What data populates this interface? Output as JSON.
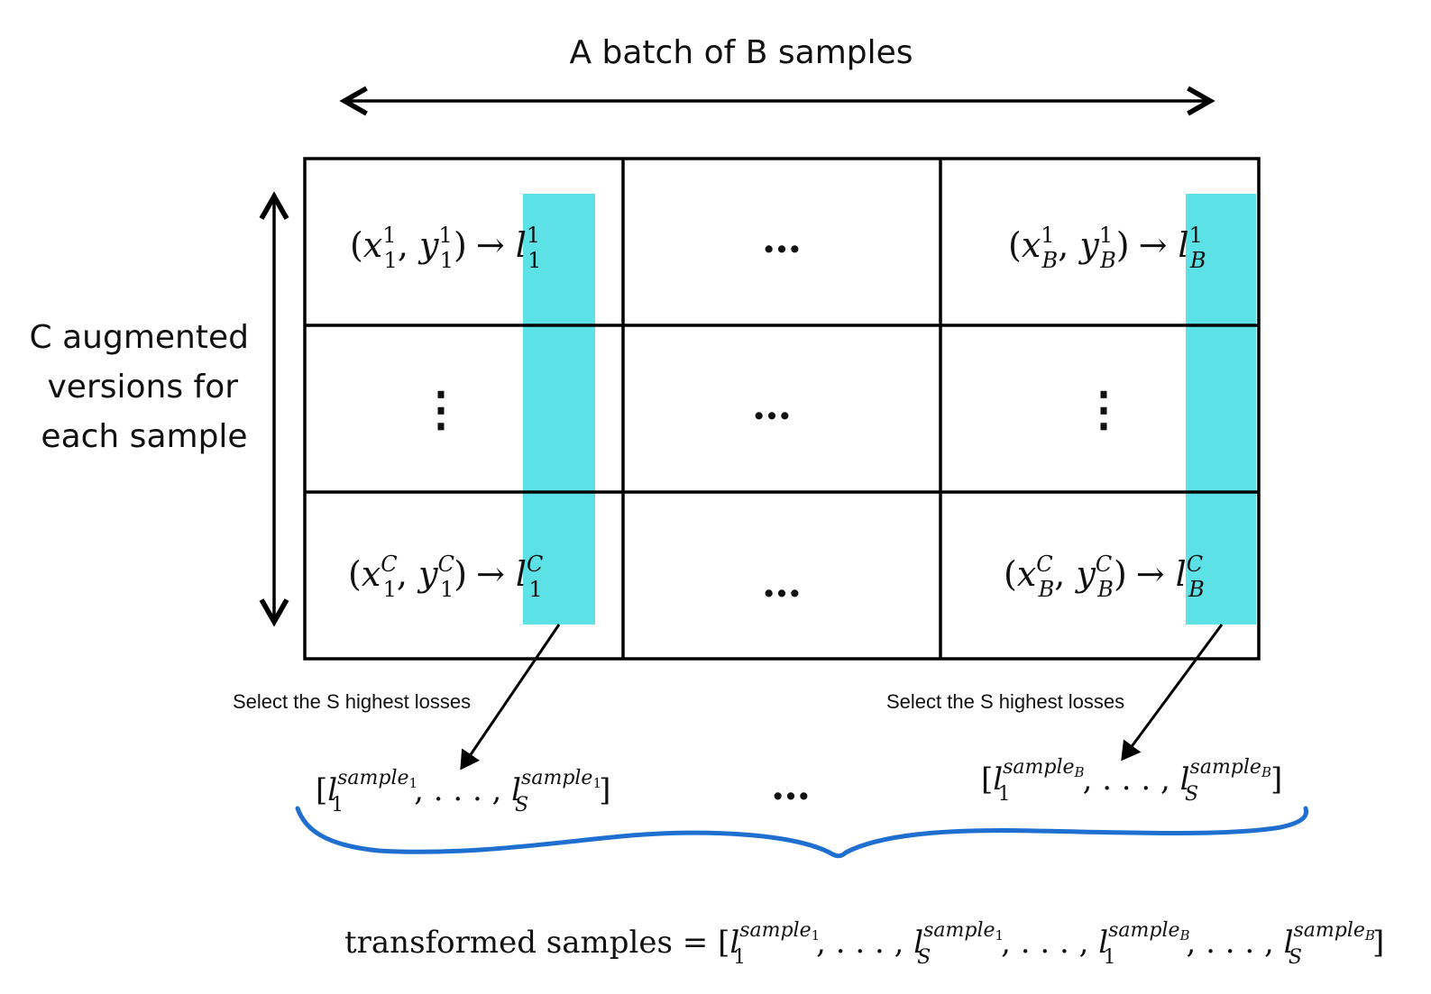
{
  "diagram": {
    "title": "A batch of B samples",
    "side_label": [
      "C augmented",
      "versions for",
      "each sample"
    ],
    "colors": {
      "highlight": "#5ce1e6",
      "brace": "#1e6fd0",
      "ink": "#000000"
    },
    "grid": {
      "rows": 3,
      "cols": 3,
      "cells": {
        "r1c1": {
          "open": "(",
          "x": "x",
          "x_sup": "1",
          "x_sub": "1",
          "sep": ", ",
          "y": "y",
          "y_sup": "1",
          "y_sub": "1",
          "close": ")",
          "arrow": "→",
          "l": "l",
          "l_sup": "1",
          "l_sub": "1"
        },
        "r1c2": "…",
        "r1c3": {
          "open": "(",
          "x": "x",
          "x_sup": "1",
          "x_sub": "B",
          "sep": ", ",
          "y": "y",
          "y_sup": "1",
          "y_sub": "B",
          "close": ")",
          "arrow": "→",
          "l": "l",
          "l_sup": "1",
          "l_sub": "B"
        },
        "r2c1": "⋮",
        "r2c2": "…",
        "r2c3": "⋮",
        "r3c1": {
          "open": "(",
          "x": "x",
          "x_sup": "C",
          "x_sub": "1",
          "sep": ", ",
          "y": "y",
          "y_sup": "C",
          "y_sub": "1",
          "close": ")",
          "arrow": "→",
          "l": "l",
          "l_sup": "C",
          "l_sub": "1"
        },
        "r3c2": "…",
        "r3c3": {
          "open": "(",
          "x": "x",
          "x_sup": "C",
          "x_sub": "B",
          "sep": ", ",
          "y": "y",
          "y_sup": "C",
          "y_sub": "B",
          "close": ")",
          "arrow": "→",
          "l": "l",
          "l_sup": "C",
          "l_sub": "B"
        }
      }
    },
    "select_label_left": "Select the S highest losses",
    "select_label_right": "Select the S highest losses",
    "list_left": {
      "open": "[",
      "l": "l",
      "sub1": "1",
      "sup1": "sample",
      "sup1_sub": "1",
      "ellipsis": ", . . . , ",
      "subS": "S",
      "close": "]"
    },
    "list_middle": "…",
    "list_right": {
      "open": "[",
      "l": "l",
      "sub1": "1",
      "sup1": "sample",
      "sup1_sub": "B",
      "ellipsis": ", . . . , ",
      "subS": "S",
      "close": "]"
    },
    "formula": {
      "lhs": "transformed samples",
      "eq": " = ",
      "open": "[",
      "l": "l",
      "one": "1",
      "S": "S",
      "sample": "sample",
      "idx1": "1",
      "idxB": "B",
      "ellipsis": ", . . . , ",
      "close": "]"
    }
  }
}
